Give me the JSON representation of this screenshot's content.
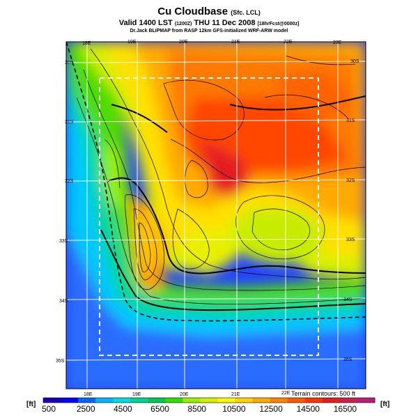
{
  "header": {
    "title": "Cu Cloudbase",
    "title_sub": "(Sfc. LCL)",
    "valid_prefix": "Valid 1400 LST",
    "valid_code": "(1200Z)",
    "valid_date": "THU 11 Dec 2008",
    "valid_suffix": "[18hrFcst@0000z]",
    "credit": "Dr.Jack BLIPMAP from RASP 12km GFS-initialized WRF-ARW model"
  },
  "map": {
    "top_lon_labels": [
      "18E",
      "19E",
      "20E",
      "21E",
      "22E",
      "23E"
    ],
    "bottom_lon_labels": [
      "18E",
      "19E",
      "20E",
      "21E",
      "22E"
    ],
    "left_lat_labels": [
      "30S",
      "31S",
      "32S",
      "33S",
      "34S",
      "35S"
    ],
    "right_lat_labels": [
      "30S",
      "31S",
      "32S",
      "33S",
      "34S",
      "35S"
    ],
    "terrain_note": "Terrain contours: 500 ft"
  },
  "colorbar": {
    "unit_left": "[ft]",
    "unit_right": "[ft]",
    "labels": [
      "500",
      "2500",
      "4500",
      "6500",
      "8500",
      "10500",
      "12500",
      "14500",
      "16500"
    ],
    "colors": [
      "#1a00b4",
      "#0000ff",
      "#0064ff",
      "#00b4ff",
      "#00dcdc",
      "#00d296",
      "#00c850",
      "#32dc00",
      "#96f000",
      "#d2f000",
      "#fafa00",
      "#ffd200",
      "#ffaa00",
      "#ff8200",
      "#ff5a00",
      "#ff3200",
      "#e61e1e",
      "#c81e50",
      "#b41e78"
    ]
  }
}
